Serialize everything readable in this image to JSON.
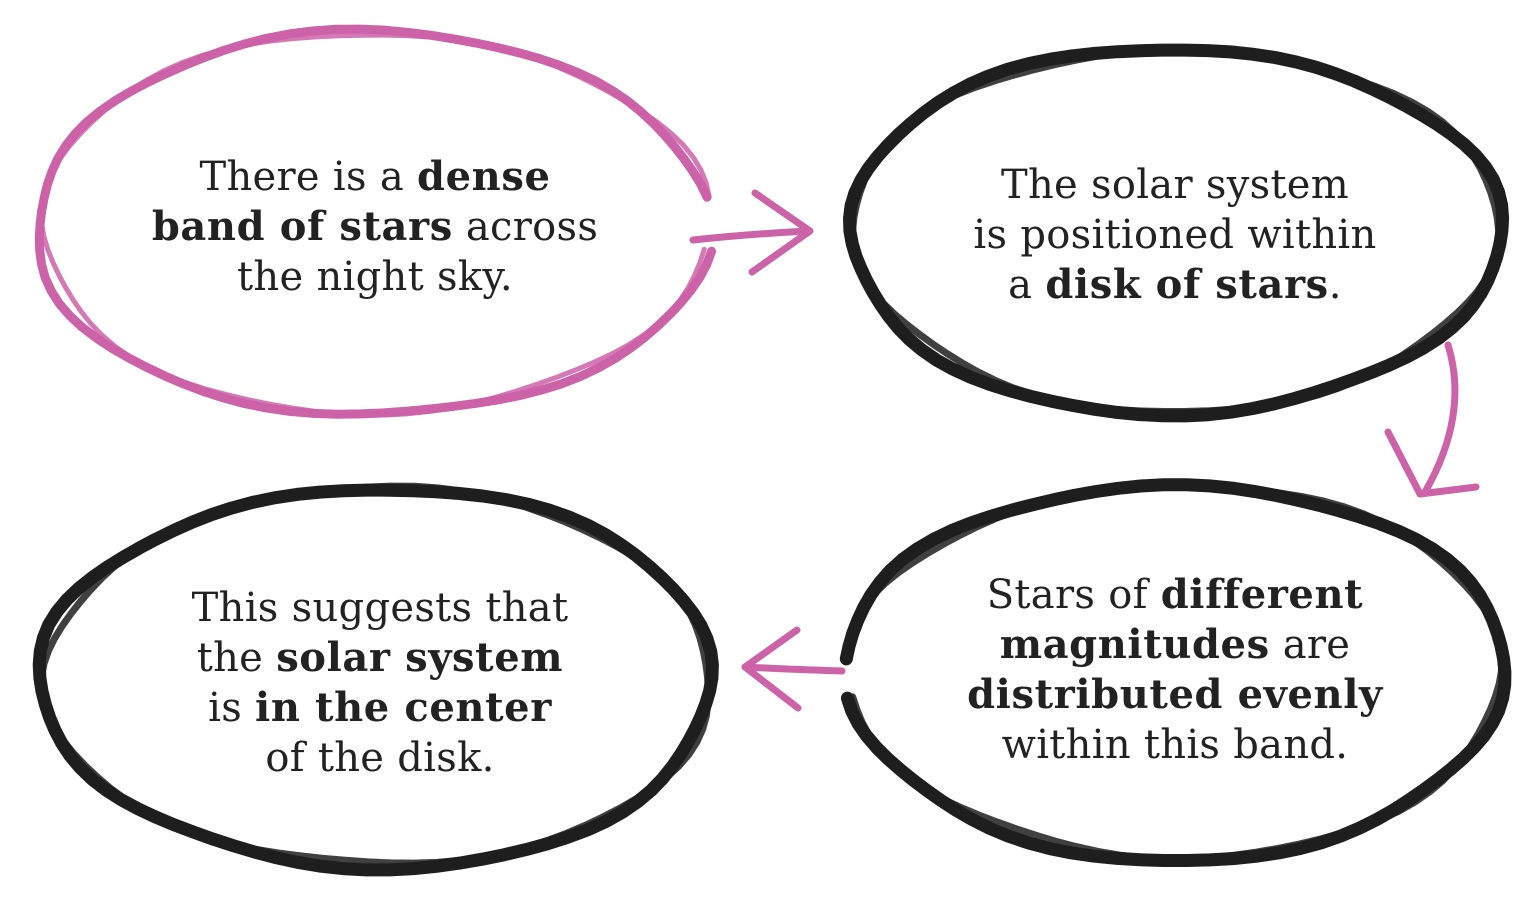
{
  "colors": {
    "accent": "#cc62a8",
    "ink": "#1e1e1e",
    "text": "#222222",
    "background": "#ffffff"
  },
  "nodes": [
    {
      "id": "node-1",
      "stroke": "accent",
      "lines": [
        [
          {
            "t": "There is a ",
            "b": false
          },
          {
            "t": "dense",
            "b": true
          }
        ],
        [
          {
            "t": "band of stars",
            "b": true
          },
          {
            "t": " across",
            "b": false
          }
        ],
        [
          {
            "t": "the night sky.",
            "b": false
          }
        ]
      ]
    },
    {
      "id": "node-2",
      "stroke": "ink",
      "lines": [
        [
          {
            "t": "The solar system",
            "b": false
          }
        ],
        [
          {
            "t": "is positioned within",
            "b": false
          }
        ],
        [
          {
            "t": "a ",
            "b": false
          },
          {
            "t": "disk of stars",
            "b": true
          },
          {
            "t": ".",
            "b": false
          }
        ]
      ]
    },
    {
      "id": "node-3",
      "stroke": "ink",
      "lines": [
        [
          {
            "t": "Stars of ",
            "b": false
          },
          {
            "t": "different",
            "b": true
          }
        ],
        [
          {
            "t": "magnitudes",
            "b": true
          },
          {
            "t": " are",
            "b": false
          }
        ],
        [
          {
            "t": "distributed evenly",
            "b": true
          }
        ],
        [
          {
            "t": "within this band.",
            "b": false
          }
        ]
      ]
    },
    {
      "id": "node-4",
      "stroke": "ink",
      "lines": [
        [
          {
            "t": "This suggests that",
            "b": false
          }
        ],
        [
          {
            "t": "the ",
            "b": false
          },
          {
            "t": "solar system",
            "b": true
          }
        ],
        [
          {
            "t": "is ",
            "b": false
          },
          {
            "t": "in the center",
            "b": true
          }
        ],
        [
          {
            "t": "of the disk.",
            "b": false
          }
        ]
      ]
    }
  ],
  "arrows": [
    {
      "from": "node-1",
      "to": "node-2",
      "stroke": "accent"
    },
    {
      "from": "node-2",
      "to": "node-3",
      "stroke": "accent"
    },
    {
      "from": "node-3",
      "to": "node-4",
      "stroke": "accent"
    }
  ]
}
